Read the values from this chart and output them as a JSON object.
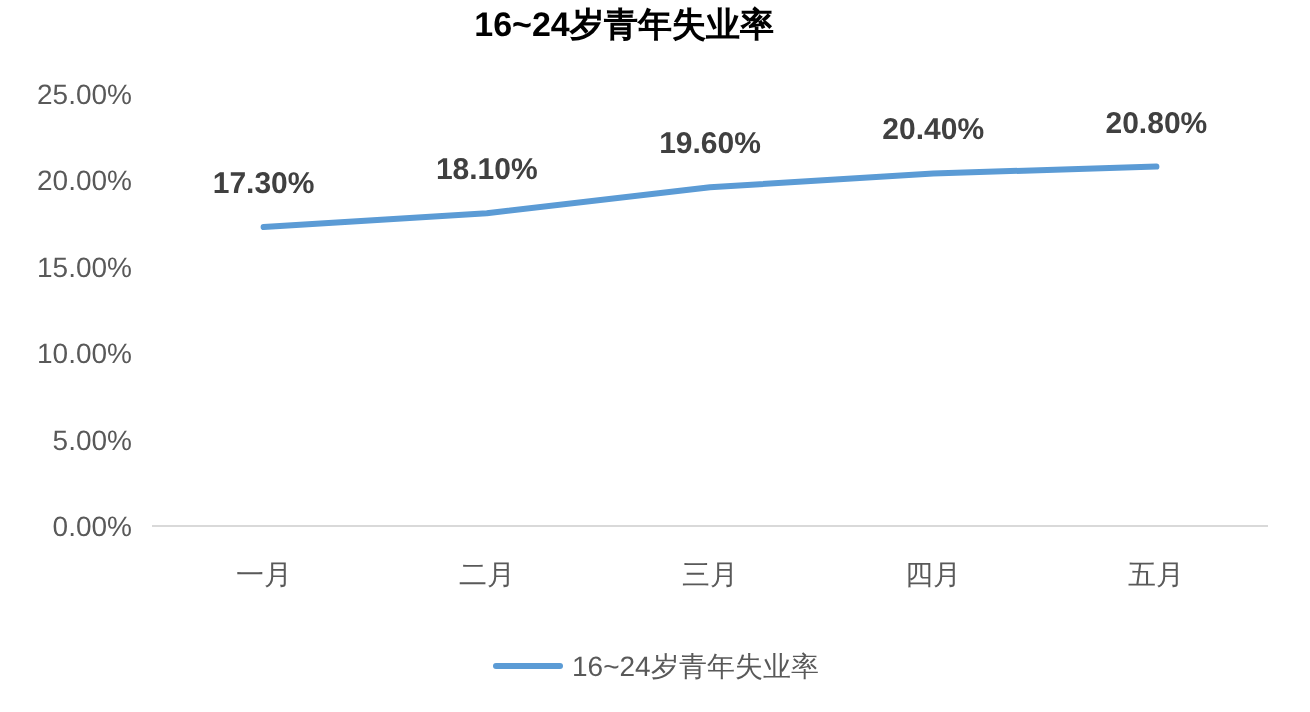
{
  "chart_data": {
    "type": "line",
    "title": "16~24岁青年失业率",
    "categories": [
      "一月",
      "二月",
      "三月",
      "四月",
      "五月"
    ],
    "series": [
      {
        "name": "16~24岁青年失业率",
        "color": "#5b9bd5",
        "values": [
          17.3,
          18.1,
          19.6,
          20.4,
          20.8
        ],
        "value_labels": [
          "17.30%",
          "18.10%",
          "19.60%",
          "20.40%",
          "20.80%"
        ]
      }
    ],
    "ylim": [
      0,
      25
    ],
    "yticks": [
      {
        "value": 0,
        "label": "0.00%"
      },
      {
        "value": 5,
        "label": "5.00%"
      },
      {
        "value": 10,
        "label": "10.00%"
      },
      {
        "value": 15,
        "label": "15.00%"
      },
      {
        "value": 20,
        "label": "20.00%"
      },
      {
        "value": 25,
        "label": "25.00%"
      }
    ],
    "grid": false,
    "legend": "bottom",
    "marker": "none",
    "line_style": "solid"
  }
}
